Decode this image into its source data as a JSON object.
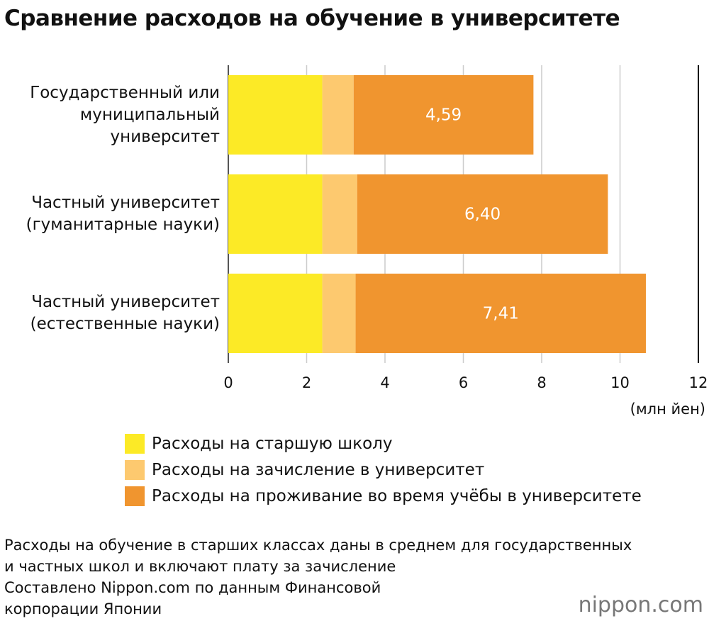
{
  "chart_data": {
    "type": "stacked_bar_horizontal",
    "title": "Сравнение расходов на обучение в университете",
    "categories": [
      "Государственный или\nмуниципальный\nуниверситет",
      "Частный университет\n(гуманитарные науки)",
      "Частный университет\n(естественные науки)"
    ],
    "series": [
      {
        "name": "Расходы на старшую школу",
        "color": "#fcea26",
        "values": [
          2.4,
          2.4,
          2.4
        ]
      },
      {
        "name": "Расходы на зачисление в университет",
        "color": "#fdc96f",
        "values": [
          0.8,
          0.89,
          0.85
        ]
      },
      {
        "name": "Расходы на проживание во время учёбы в университете",
        "color": "#f0952f",
        "values": [
          4.59,
          6.4,
          7.41
        ],
        "value_labels": [
          "4,59",
          "6,40",
          "7,41"
        ]
      }
    ],
    "xlim": [
      0,
      12
    ],
    "xticks": [
      0,
      2,
      4,
      6,
      8,
      10,
      12
    ],
    "grid": true,
    "x_axis_label": "(млн йен)",
    "notes": [
      "Расходы на обучение в старших классах даны в среднем для государственных\nи частных школ и включают плату за зачисление",
      "Составлено Nippon.com по данным Финансовой\nкорпорации Японии"
    ],
    "logo": "nippon.com"
  }
}
